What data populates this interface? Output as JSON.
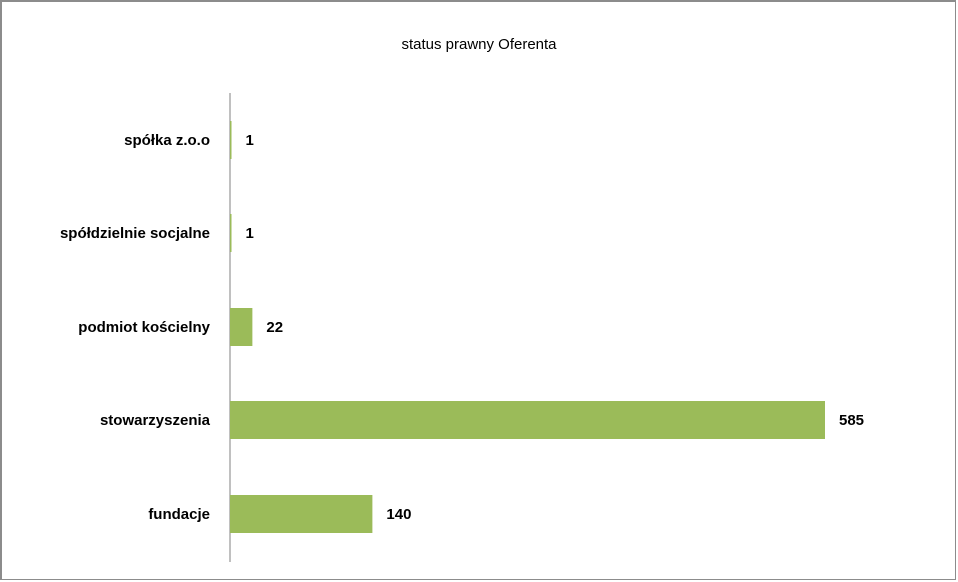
{
  "chart_data": {
    "type": "bar",
    "orientation": "horizontal",
    "title": "status prawny Oferenta",
    "categories": [
      "spółka z.o.o",
      "spółdzielnie socjalne",
      "podmiot kościelny",
      "stowarzyszenia",
      "fundacje"
    ],
    "values": [
      1,
      1,
      22,
      585,
      140
    ],
    "value_labels": [
      "1",
      "1",
      "22",
      "585",
      "140"
    ],
    "xlim": [
      0,
      600
    ],
    "grid": false,
    "legend": "none",
    "bar_color": "#9bbb59"
  }
}
